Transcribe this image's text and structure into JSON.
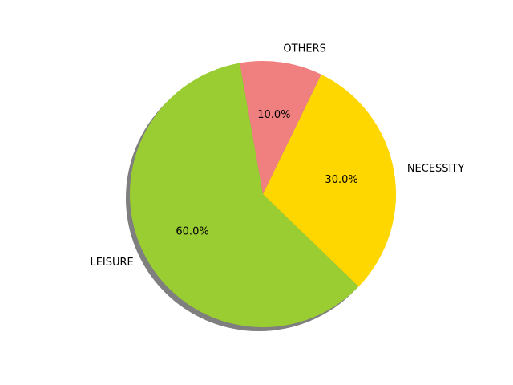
{
  "chart_data": {
    "type": "pie",
    "title": "",
    "shadow": true,
    "autopct_format": "{value}%",
    "slices": [
      {
        "label": "LEISURE",
        "value": 60.0,
        "pct_text": "60.0%",
        "color": "#9acd32"
      },
      {
        "label": "NECESSITY",
        "value": 30.0,
        "pct_text": "30.0%",
        "color": "#ffd700"
      },
      {
        "label": "OTHERS",
        "value": 10.0,
        "pct_text": "10.0%",
        "color": "#f08080"
      }
    ]
  }
}
